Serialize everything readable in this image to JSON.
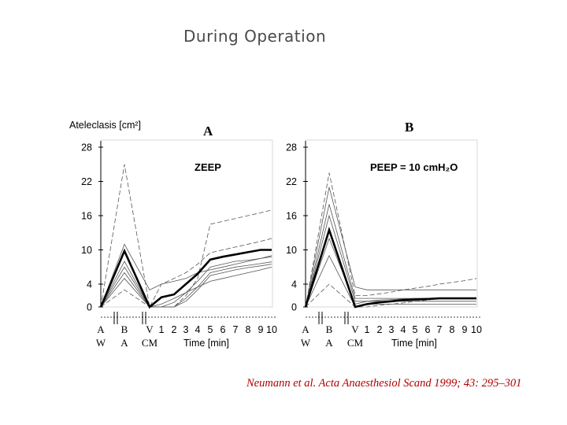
{
  "slide_title": "During Operation",
  "citation": "Neumann et al. Acta Anaesthesiol Scand 1999; 43: 295–301",
  "shared_ylabel": "Ateleclasis [cm²]",
  "chart_data": [
    {
      "type": "line",
      "panel_label": "A",
      "annotation": "ZEEP",
      "y_ticks": [
        "28",
        "22",
        "16",
        "10",
        "4",
        "0"
      ],
      "ylim": [
        0,
        28
      ],
      "x_ticks": [
        "A",
        "B",
        "V",
        "1",
        "2",
        "3",
        "4",
        "5",
        "6",
        "7",
        "8",
        "9",
        "10"
      ],
      "x_ticks_second_row": {
        "A": "W",
        "B": "A",
        "V": "CM"
      },
      "xlabel": "Time [min]",
      "mean_series": {
        "x": [
          "A",
          "B",
          "V",
          "1",
          "2",
          "3",
          "4",
          "5",
          "6",
          "7",
          "8",
          "9",
          "10"
        ],
        "values": [
          0,
          9.8,
          0,
          1.7,
          2.2,
          4,
          5.8,
          8.3,
          8.8,
          9.2,
          9.6,
          10,
          10
        ]
      },
      "individual_series": [
        {
          "values": [
            0,
            25,
            0,
            4,
            5,
            6,
            7.5,
            9.5,
            10,
            10.5,
            11,
            11.5,
            12
          ],
          "style": "dashed"
        },
        {
          "values": [
            0,
            11,
            3,
            4,
            4.5,
            5,
            6,
            6.5,
            7,
            7.5,
            8,
            8.5,
            9
          ],
          "style": "solid"
        },
        {
          "values": [
            0,
            8,
            0,
            0,
            0.8,
            2.5,
            4.5,
            7,
            7.5,
            8,
            8.2,
            8.5,
            8.8
          ],
          "style": "solid"
        },
        {
          "values": [
            0,
            7,
            0,
            0,
            0,
            1.5,
            3.5,
            6,
            6.5,
            7,
            7.3,
            7.6,
            7.9
          ],
          "style": "solid"
        },
        {
          "values": [
            0,
            6,
            0,
            0,
            0,
            1,
            3,
            5.5,
            6,
            6.5,
            6.9,
            7.2,
            7.5
          ],
          "style": "solid"
        },
        {
          "values": [
            0,
            5,
            0,
            0.5,
            1.5,
            2.5,
            3.5,
            4.5,
            5,
            5.5,
            6,
            6.5,
            7
          ],
          "style": "solid"
        },
        {
          "values": [
            0,
            3,
            0,
            0,
            0,
            2,
            5,
            14.5,
            15,
            15.5,
            16,
            16.5,
            17
          ],
          "style": "dashed"
        }
      ]
    },
    {
      "type": "line",
      "panel_label": "B",
      "annotation": "PEEP = 10 cmH₂O",
      "y_ticks": [
        "28",
        "22",
        "16",
        "10",
        "4",
        "0"
      ],
      "ylim": [
        0,
        28
      ],
      "x_ticks": [
        "A",
        "B",
        "V",
        "1",
        "2",
        "3",
        "4",
        "5",
        "6",
        "7",
        "8",
        "9",
        "10"
      ],
      "x_ticks_second_row": {
        "A": "W",
        "B": "A",
        "V": "CM"
      },
      "xlabel": "Time [min]",
      "mean_series": {
        "x": [
          "A",
          "B",
          "V",
          "1",
          "2",
          "3",
          "4",
          "5",
          "6",
          "7",
          "8",
          "9",
          "10"
        ],
        "values": [
          0,
          13.5,
          0,
          0.5,
          0.8,
          1,
          1.2,
          1.3,
          1.4,
          1.5,
          1.5,
          1.5,
          1.5
        ]
      },
      "individual_series": [
        {
          "values": [
            0,
            23.5,
            2,
            2,
            2.3,
            2.6,
            3,
            3.3,
            3.6,
            4,
            4.3,
            4.6,
            5
          ],
          "style": "dashed"
        },
        {
          "values": [
            0,
            21,
            3.5,
            3,
            3,
            3,
            3,
            3,
            3,
            3,
            3,
            3,
            3
          ],
          "style": "solid"
        },
        {
          "values": [
            0,
            18,
            1.5,
            1.5,
            1.5,
            1.5,
            1.5,
            1.5,
            1.5,
            1.5,
            1.5,
            1.5,
            1.5
          ],
          "style": "solid"
        },
        {
          "values": [
            0,
            16,
            1,
            1,
            1.2,
            1.3,
            1.4,
            1.5,
            1.5,
            1.5,
            1.5,
            1.5,
            1.5
          ],
          "style": "solid"
        },
        {
          "values": [
            0,
            12,
            0.5,
            1,
            1,
            1,
            1,
            1,
            1,
            1,
            1,
            1,
            1
          ],
          "style": "solid"
        },
        {
          "values": [
            0,
            9,
            0,
            0.5,
            0.5,
            0.5,
            0.5,
            0.5,
            0.5,
            0.5,
            0.5,
            0.5,
            0.5
          ],
          "style": "solid"
        },
        {
          "values": [
            0,
            4,
            0,
            0,
            0.3,
            0.5,
            0.7,
            1,
            1.2,
            1.5,
            1.5,
            1.5,
            1.5
          ],
          "style": "dashed"
        }
      ]
    }
  ]
}
